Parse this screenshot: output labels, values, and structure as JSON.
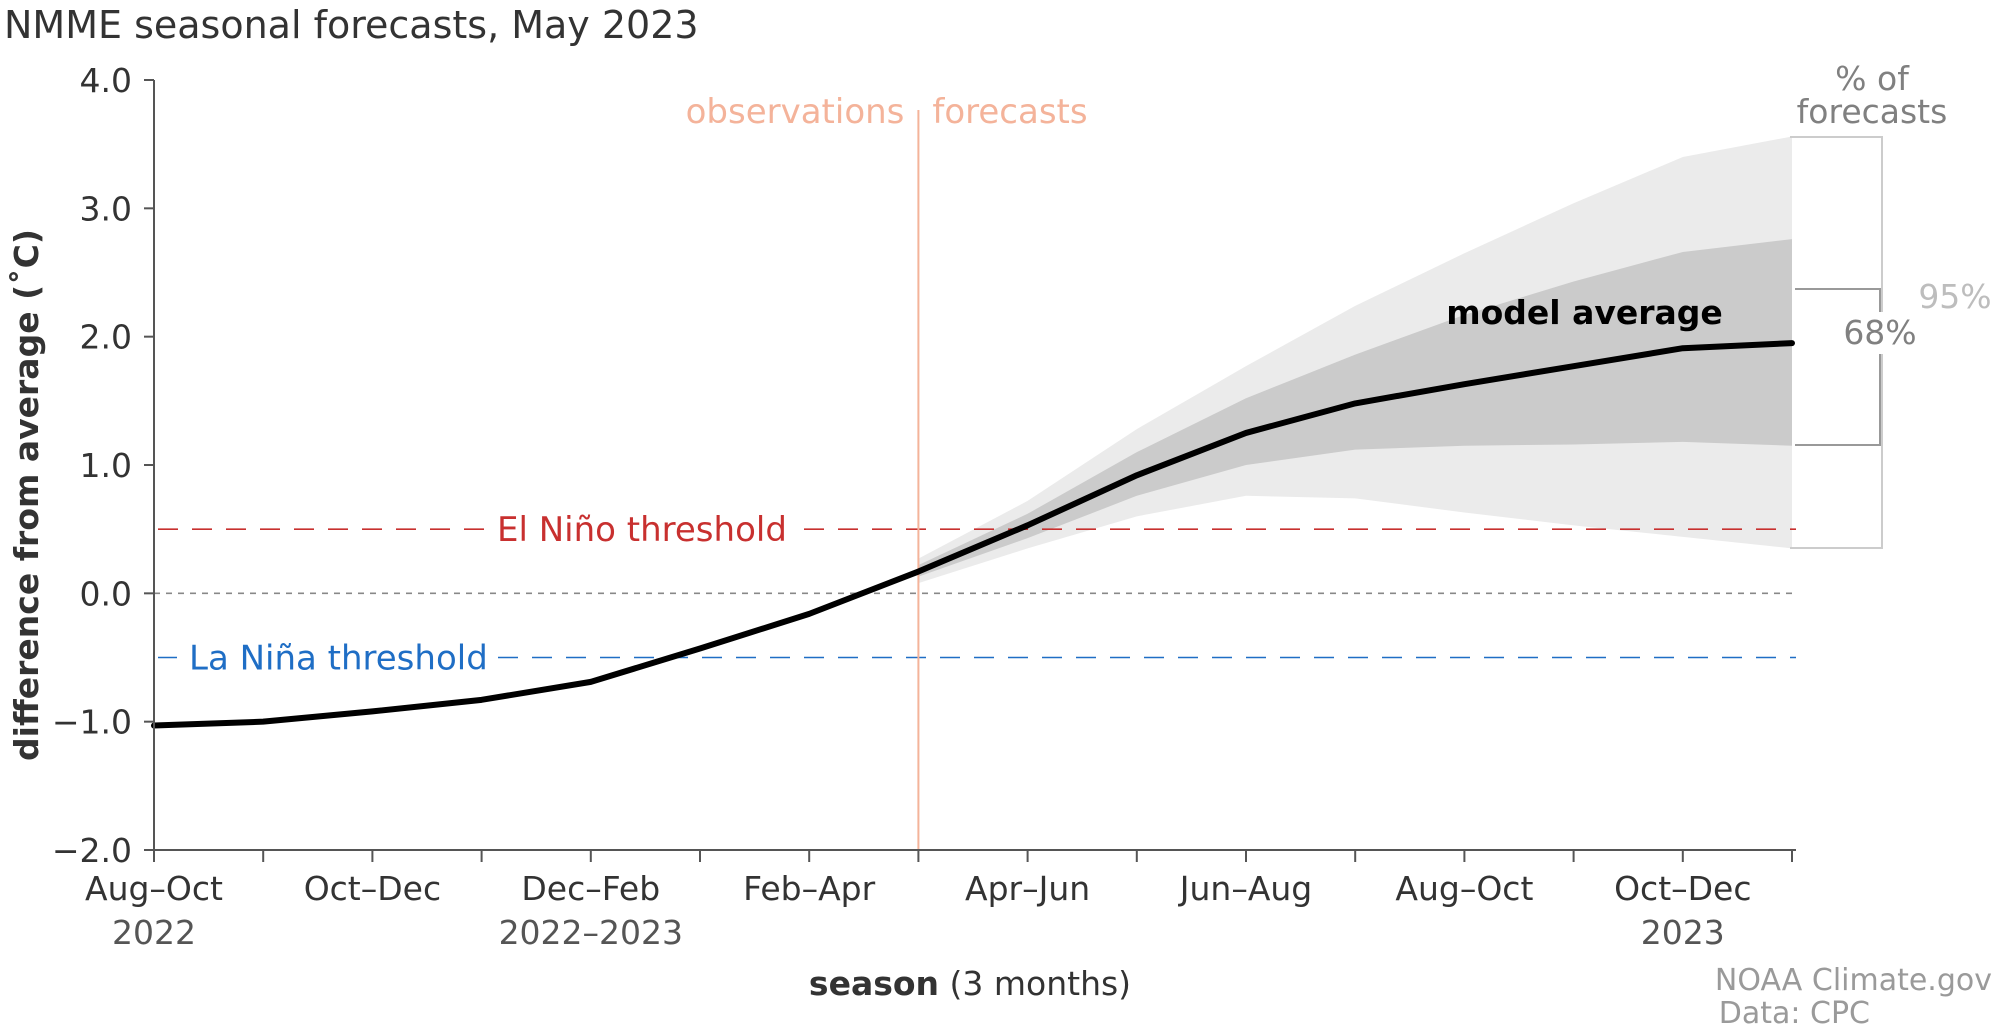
{
  "title": "NMME seasonal forecasts, May 2023",
  "colors": {
    "text": "#404040",
    "axis": "#555555",
    "observations": "#f4b39a",
    "forecast_line": "#f4b39a",
    "band95": "#ebebeb",
    "band68": "#cbcbcb",
    "model_line": "#000000",
    "elnino": "#c8302f",
    "lanina": "#1f6ec5",
    "zero_line": "#888888",
    "pct_label": "#808080",
    "pct95_label": "#bdbdbd",
    "credit": "#9a9a9a"
  },
  "labels": {
    "observations": "observations",
    "forecasts": "forecasts",
    "pct_of_line1": "% of",
    "pct_of_line2": "forecasts",
    "pct95": "95%",
    "pct68": "68%",
    "model_average": "model average",
    "elnino": "El Niño threshold",
    "lanina": "La Niña threshold",
    "xlabel_bold": "season",
    "xlabel_rest": " (3 months)",
    "credit1": "NOAA Climate.gov",
    "credit2": "Data: CPC"
  },
  "chart_data": {
    "type": "line",
    "title": "NMME seasonal forecasts, May 2023",
    "ylabel": "difference from average (˚C)",
    "xlabel": "season (3 months)",
    "ylim": [
      -2.0,
      4.0
    ],
    "yticks": [
      "4.0",
      "3.0",
      "2.0",
      "1.0",
      "0.0",
      "−1.0",
      "−2.0"
    ],
    "x_ticks": [
      {
        "label": "Aug–Oct",
        "sub": "2022"
      },
      {
        "label": "",
        "sub": ""
      },
      {
        "label": "Oct–Dec",
        "sub": ""
      },
      {
        "label": "",
        "sub": ""
      },
      {
        "label": "Dec–Feb",
        "sub": "2022–2023"
      },
      {
        "label": "",
        "sub": ""
      },
      {
        "label": "Feb–Apr",
        "sub": ""
      },
      {
        "label": "",
        "sub": ""
      },
      {
        "label": "Apr–Jun",
        "sub": ""
      },
      {
        "label": "",
        "sub": ""
      },
      {
        "label": "Jun–Aug",
        "sub": ""
      },
      {
        "label": "",
        "sub": ""
      },
      {
        "label": "Aug–Oct",
        "sub": ""
      },
      {
        "label": "",
        "sub": ""
      },
      {
        "label": "Oct–Dec",
        "sub": "2023"
      },
      {
        "label": "",
        "sub": ""
      }
    ],
    "observations_index": [
      0,
      1,
      2,
      3,
      4,
      5,
      6,
      7
    ],
    "observations": [
      -1.03,
      -1.0,
      -0.92,
      -0.83,
      -0.69,
      -0.43,
      -0.16,
      0.17
    ],
    "forecast_index": [
      7,
      8,
      9,
      10,
      11,
      12,
      13,
      14,
      15
    ],
    "model_average": [
      0.17,
      0.53,
      0.92,
      1.25,
      1.48,
      1.63,
      1.77,
      1.91,
      1.95
    ],
    "band68_upper": [
      0.22,
      0.62,
      1.1,
      1.52,
      1.86,
      2.17,
      2.43,
      2.66,
      2.76
    ],
    "band68_lower": [
      0.13,
      0.43,
      0.76,
      1.0,
      1.12,
      1.15,
      1.16,
      1.18,
      1.15
    ],
    "band95_upper": [
      0.27,
      0.72,
      1.28,
      1.77,
      2.24,
      2.65,
      3.04,
      3.4,
      3.56
    ],
    "band95_lower": [
      0.08,
      0.35,
      0.6,
      0.76,
      0.74,
      0.63,
      0.53,
      0.44,
      0.35
    ],
    "forecast_start_index": 7,
    "elnino_threshold": 0.5,
    "lanina_threshold": -0.5,
    "series": [
      {
        "values_key": "observations"
      },
      {
        "name": "model average",
        "values_key": "model_average"
      }
    ]
  }
}
